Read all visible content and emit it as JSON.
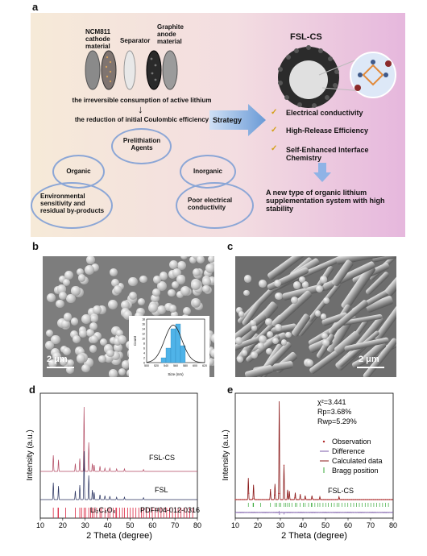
{
  "panel_labels": {
    "a": "a",
    "b": "b",
    "c": "c",
    "d": "d",
    "e": "e"
  },
  "panel_a": {
    "cathode": "NCM811 cathode material",
    "separator": "Separator",
    "anode": "Graphite anode material",
    "line1": "the irreversible consumption of active lithium",
    "line2": "the reduction of initial Coulombic efficiency",
    "center": "Prelithiation Agents",
    "organic": "Organic",
    "inorganic": "Inorganic",
    "organic_issue": "Environmental sensitivity and residual by-products",
    "inorganic_issue": "Poor electrical conductivity",
    "strategy": "Strategy",
    "product": "FSL-CS",
    "features": [
      "Electrical conductivity",
      "High-Release Efficiency",
      "Self-Enhanced Interface Chemistry"
    ],
    "conclusion": "A new type of organic lithium supplementation system with high stability"
  },
  "panel_b": {
    "scale": "2 μm",
    "inset": {
      "xlabel": "Size (nm)",
      "ylabel": "Count",
      "xticks": [
        "500",
        "520",
        "540",
        "560",
        "580",
        "600",
        "620"
      ],
      "yticks": [
        "0",
        "2",
        "4",
        "6",
        "8",
        "10",
        "12",
        "14",
        "16",
        "18"
      ]
    }
  },
  "panel_c": {
    "scale": "2 μm"
  },
  "colors": {
    "fslcs": "#b24a62",
    "fsl": "#27305e",
    "ref": "#d9243f",
    "obs": "#b02a2a",
    "diff": "#7a5aa8",
    "calc": "#8b1a1a",
    "bragg": "#3aa83a"
  },
  "chart_data": [
    {
      "type": "line",
      "panel": "d",
      "xlabel": "2 Theta (degree)",
      "ylabel": "Intensity (a.u.)",
      "xlim": [
        10,
        80
      ],
      "xticks": [
        10,
        20,
        30,
        40,
        50,
        60,
        70,
        80
      ],
      "series": [
        {
          "name": "FSL-CS",
          "peaks": [
            [
              15.8,
              0.25
            ],
            [
              18.1,
              0.18
            ],
            [
              25.6,
              0.12
            ],
            [
              27.6,
              0.2
            ],
            [
              29.5,
              1.0
            ],
            [
              31.6,
              0.45
            ],
            [
              33.2,
              0.12
            ],
            [
              34.0,
              0.1
            ],
            [
              36.6,
              0.08
            ],
            [
              38.8,
              0.05
            ],
            [
              41.0,
              0.05
            ],
            [
              44.0,
              0.04
            ],
            [
              47.5,
              0.04
            ],
            [
              56.0,
              0.03
            ]
          ]
        },
        {
          "name": "FSL",
          "peaks": [
            [
              15.8,
              0.35
            ],
            [
              18.1,
              0.28
            ],
            [
              25.6,
              0.18
            ],
            [
              27.6,
              0.3
            ],
            [
              29.5,
              1.0
            ],
            [
              31.6,
              0.5
            ],
            [
              33.2,
              0.2
            ],
            [
              34.0,
              0.15
            ],
            [
              36.6,
              0.1
            ],
            [
              38.8,
              0.08
            ],
            [
              41.0,
              0.07
            ],
            [
              44.0,
              0.05
            ],
            [
              47.5,
              0.05
            ],
            [
              56.0,
              0.04
            ]
          ]
        }
      ],
      "reference": {
        "name": "Li₂C₄O₄",
        "card": "PDF#04-012-0316",
        "lines": [
          15.8,
          17.9,
          18.1,
          21.3,
          25.6,
          27.6,
          28.4,
          29.5,
          30.2,
          31.6,
          32.4,
          33.2,
          34.0,
          35.1,
          36.6,
          37.3,
          38.8,
          40.2,
          41.0,
          42.5,
          43.7,
          44.0,
          45.3,
          46.6,
          47.5,
          48.9,
          50.1,
          51.3,
          52.6,
          53.9,
          55.1,
          56.0,
          57.3,
          58.6,
          59.9,
          61.2,
          62.5,
          63.8,
          65.0,
          66.3,
          67.6,
          68.9,
          70.1,
          71.4,
          72.7,
          74.0,
          75.3,
          76.6,
          77.9
        ]
      }
    },
    {
      "type": "line",
      "panel": "e",
      "xlabel": "2 Theta (degree)",
      "ylabel": "Intensity (a.u.)",
      "xlim": [
        10,
        80
      ],
      "xticks": [
        10,
        20,
        30,
        40,
        50,
        60,
        70,
        80
      ],
      "stats": [
        "χ²=3.441",
        "Rp=3.68%",
        "Rwp=5.29%"
      ],
      "legend": [
        "Observation",
        "Difference",
        "Calculated data",
        "Bragg position"
      ],
      "sample": "FSL-CS",
      "peaks": [
        [
          15.8,
          0.22
        ],
        [
          18.1,
          0.15
        ],
        [
          25.6,
          0.1
        ],
        [
          27.6,
          0.16
        ],
        [
          29.5,
          1.0
        ],
        [
          31.6,
          0.35
        ],
        [
          33.2,
          0.1
        ],
        [
          34.0,
          0.08
        ],
        [
          36.6,
          0.07
        ],
        [
          38.8,
          0.05
        ],
        [
          41.0,
          0.04
        ],
        [
          44.0,
          0.04
        ],
        [
          47.5,
          0.03
        ],
        [
          56.0,
          0.03
        ]
      ]
    }
  ]
}
